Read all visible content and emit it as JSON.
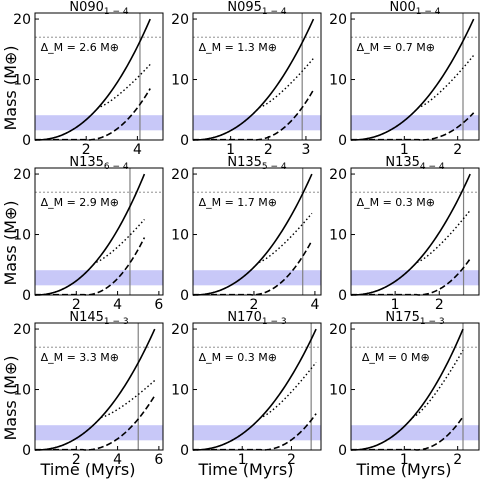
{
  "xlabel": "Time (Myrs)",
  "ylabel": "Mass (M⊕)",
  "colors": {
    "band": "#c8c8f8",
    "line": "#000000",
    "vline": "#808080",
    "hline": "#808080"
  },
  "chart_data": [
    {
      "type": "line",
      "title": "N090",
      "subscript": "1 − 4",
      "xlim": [
        0,
        5
      ],
      "ylim": [
        0,
        21
      ],
      "xticks": [
        2,
        4
      ],
      "yticks": [
        0,
        10,
        20
      ],
      "delta": "Δ_M = 2.6 M⊕",
      "vline": 4.1,
      "hline": 17,
      "band": [
        1.6,
        4.1
      ],
      "t_end": 4.5,
      "t_dash0": 2.0,
      "dash_scale": 8.5,
      "dot_end": 12.5
    },
    {
      "type": "line",
      "title": "N095",
      "subscript": "1 − 4",
      "xlim": [
        0,
        3.4
      ],
      "ylim": [
        0,
        21
      ],
      "xticks": [
        1,
        2,
        3
      ],
      "yticks": [
        0,
        10,
        20
      ],
      "delta": "Δ_M = 1.3 M⊕",
      "vline": 2.9,
      "hline": 17,
      "band": [
        1.6,
        4.1
      ],
      "t_end": 3.2,
      "t_dash0": 1.6,
      "dash_scale": 8.3,
      "dot_end": 13.5
    },
    {
      "type": "line",
      "title": "N00",
      "subscript": "1 − 4",
      "xlim": [
        0,
        2.4
      ],
      "ylim": [
        0,
        21
      ],
      "xticks": [
        1,
        2
      ],
      "yticks": [
        0,
        10,
        20
      ],
      "delta": "Δ_M = 0.7 M⊕",
      "vline": 2.1,
      "hline": 17,
      "band": [
        1.6,
        4.1
      ],
      "t_end": 2.3,
      "t_dash0": 1.3,
      "dash_scale": 4.5,
      "dot_end": 14
    },
    {
      "type": "line",
      "title": "N135",
      "subscript": "6 − 4",
      "xlim": [
        0,
        6.2
      ],
      "ylim": [
        0,
        21
      ],
      "xticks": [
        2,
        4,
        6
      ],
      "yticks": [
        0,
        10,
        20
      ],
      "delta": "Δ_M = 2.9 M⊕",
      "vline": 4.6,
      "hline": 17,
      "band": [
        1.6,
        4.1
      ],
      "t_end": 5.3,
      "t_dash0": 2.4,
      "dash_scale": 9.5,
      "dot_end": 12.5
    },
    {
      "type": "line",
      "title": "N135",
      "subscript": "5 − 4",
      "xlim": [
        0,
        4.2
      ],
      "ylim": [
        0,
        21
      ],
      "xticks": [
        2,
        4
      ],
      "yticks": [
        0,
        10,
        20
      ],
      "delta": "Δ_M = 1.7 M⊕",
      "vline": 3.6,
      "hline": 17,
      "band": [
        1.6,
        4.1
      ],
      "t_end": 3.9,
      "t_dash0": 1.9,
      "dash_scale": 9.0,
      "dot_end": 13.5
    },
    {
      "type": "line",
      "title": "N135",
      "subscript": "4 − 4",
      "xlim": [
        0,
        2.9
      ],
      "ylim": [
        0,
        21
      ],
      "xticks": [
        1,
        2
      ],
      "yticks": [
        0,
        10,
        20
      ],
      "delta": "Δ_M = 0.3 M⊕",
      "vline": 2.55,
      "hline": 17,
      "band": [
        1.6,
        4.1
      ],
      "t_end": 2.7,
      "t_dash0": 1.5,
      "dash_scale": 6.0,
      "dot_end": 14
    },
    {
      "type": "line",
      "title": "N145",
      "subscript": "1 − 3",
      "xlim": [
        0,
        6.2
      ],
      "ylim": [
        0,
        21
      ],
      "xticks": [
        2,
        4,
        6
      ],
      "yticks": [
        0,
        10,
        20
      ],
      "delta": "Δ_M = 3.3 M⊕",
      "vline": 5.0,
      "hline": 17,
      "band": [
        1.6,
        4.1
      ],
      "t_end": 5.8,
      "t_dash0": 2.4,
      "dash_scale": 9.0,
      "dot_end": 11.5
    },
    {
      "type": "line",
      "title": "N170",
      "subscript": "1 − 3",
      "xlim": [
        0,
        2.6
      ],
      "ylim": [
        0,
        21
      ],
      "xticks": [
        1,
        2
      ],
      "yticks": [
        0,
        10,
        20
      ],
      "delta": "Δ_M = 0.3 M⊕",
      "vline": 2.4,
      "hline": 17,
      "band": [
        1.6,
        4.1
      ],
      "t_end": 2.5,
      "t_dash0": 1.4,
      "dash_scale": 6.0,
      "dot_end": 14.5
    },
    {
      "type": "line",
      "title": "N175",
      "subscript": "1 − 3",
      "xlim": [
        0,
        2.4
      ],
      "ylim": [
        0,
        21
      ],
      "xticks": [
        1,
        2
      ],
      "yticks": [
        0,
        10,
        20
      ],
      "delta": "Δ_M = 0 M⊕",
      "vline": 2.1,
      "hline": 17,
      "band": [
        1.6,
        4.1
      ],
      "t_end": 2.1,
      "t_dash0": 1.2,
      "dash_scale": 5.5,
      "dot_end": 16.5
    }
  ]
}
